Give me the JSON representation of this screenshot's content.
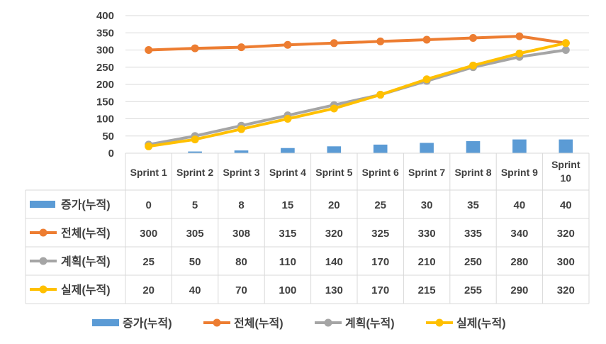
{
  "chart_data": {
    "type": "bar+line",
    "title": "",
    "xlabel": "",
    "ylabel": "",
    "ylim": [
      0,
      400
    ],
    "yticks": [
      0,
      50,
      100,
      150,
      200,
      250,
      300,
      350,
      400
    ],
    "grid": true,
    "legend_position": "bottom",
    "data_table": true,
    "categories": [
      [
        "Sprint 1"
      ],
      [
        "Sprint 2"
      ],
      [
        "Sprint 3"
      ],
      [
        "Sprint 4"
      ],
      [
        "Sprint 5"
      ],
      [
        "Sprint 6"
      ],
      [
        "Sprint 7"
      ],
      [
        "Sprint 8"
      ],
      [
        "Sprint 9"
      ],
      [
        "Sprint",
        "10"
      ]
    ],
    "series": [
      {
        "name": "증가(누적)",
        "kind": "bar",
        "color": "#5B9BD5",
        "values": [
          0,
          5,
          8,
          15,
          20,
          25,
          30,
          35,
          40,
          40
        ]
      },
      {
        "name": "전체(누적)",
        "kind": "line",
        "color": "#ED7D31",
        "values": [
          300,
          305,
          308,
          315,
          320,
          325,
          330,
          335,
          340,
          320
        ]
      },
      {
        "name": "계획(누적)",
        "kind": "line",
        "color": "#A5A5A5",
        "values": [
          25,
          50,
          80,
          110,
          140,
          170,
          210,
          250,
          280,
          300
        ]
      },
      {
        "name": "실제(누적)",
        "kind": "line",
        "color": "#FFC000",
        "values": [
          20,
          40,
          70,
          100,
          130,
          170,
          215,
          255,
          290,
          320
        ]
      }
    ]
  }
}
